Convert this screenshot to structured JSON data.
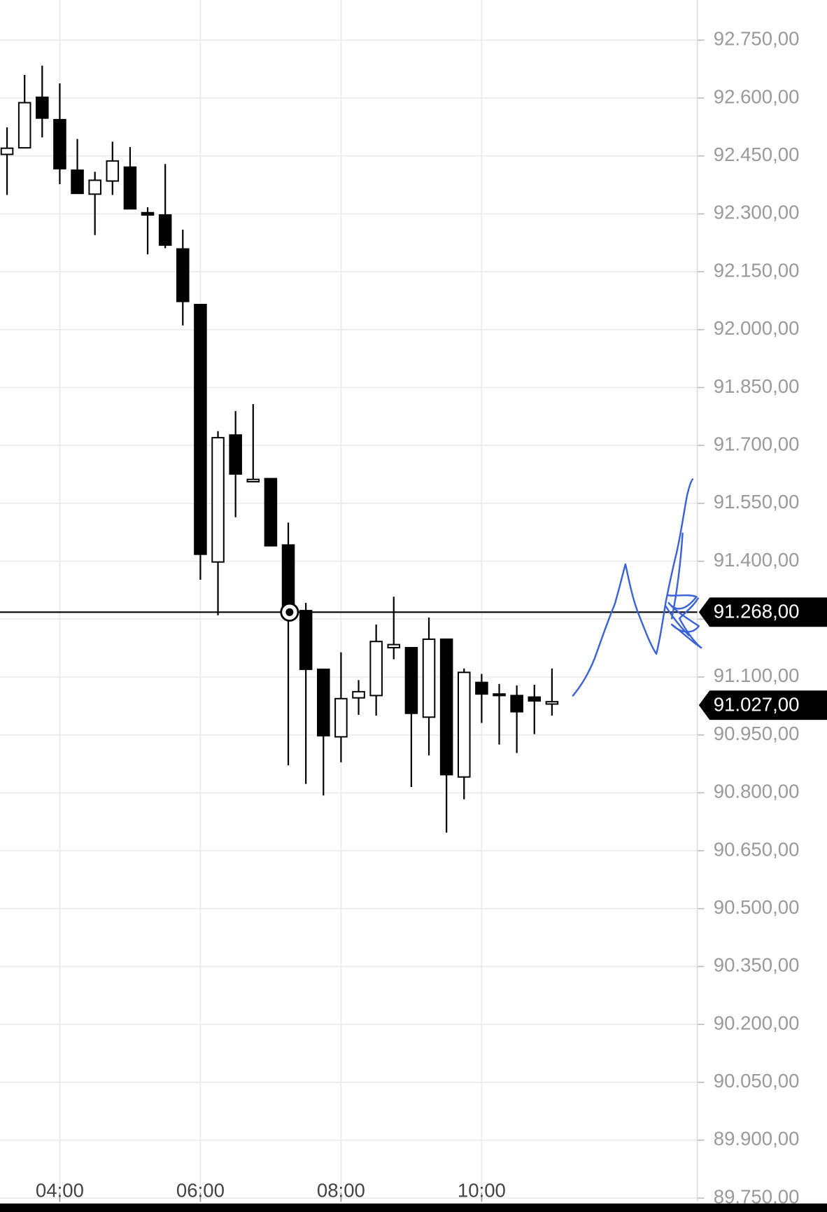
{
  "chart_data": {
    "type": "candlestick",
    "x": [
      "03:15",
      "03:30",
      "03:45",
      "04:00",
      "04:15",
      "04:30",
      "04:45",
      "05:00",
      "05:15",
      "05:30",
      "05:45",
      "06:00",
      "06:15",
      "06:30",
      "06:45",
      "07:00",
      "07:15",
      "07:30",
      "07:45",
      "08:00",
      "08:15",
      "08:30",
      "08:45",
      "09:00",
      "09:15",
      "09:30",
      "09:45",
      "10:00",
      "10:15",
      "10:30",
      "10:45",
      "11:00"
    ],
    "open": [
      92454,
      92471,
      92602,
      92544,
      92413,
      92351,
      92385,
      92421,
      92303,
      92297,
      92209,
      92065,
      91398,
      91727,
      91606,
      91614,
      91442,
      91272,
      91120,
      90945,
      91046,
      91052,
      91176,
      91176,
      90996,
      91198,
      90841,
      91086,
      91056,
      91052,
      91048,
      91030
    ],
    "high": [
      92524,
      92660,
      92684,
      92638,
      92494,
      92409,
      92487,
      92473,
      92317,
      92429,
      92259,
      92065,
      91737,
      91789,
      91807,
      91614,
      91500,
      91292,
      91120,
      91164,
      91092,
      91236,
      91308,
      91176,
      91254,
      91198,
      91122,
      91108,
      91082,
      91078,
      91080,
      91122
    ],
    "low": [
      92349,
      92471,
      92498,
      92377,
      92353,
      92245,
      92349,
      92313,
      92195,
      92211,
      92011,
      91352,
      91260,
      91514,
      91606,
      91440,
      90871,
      90823,
      90793,
      90879,
      91002,
      91000,
      91146,
      90815,
      90897,
      90697,
      90783,
      90981,
      90925,
      90903,
      90952,
      91000
    ],
    "close": [
      92470,
      92588,
      92548,
      92417,
      92353,
      92387,
      92437,
      92313,
      92297,
      92219,
      92073,
      91418,
      91720,
      91626,
      91612,
      91440,
      91278,
      91120,
      90948,
      91044,
      91062,
      91192,
      91184,
      91006,
      91198,
      90847,
      91112,
      91056,
      91052,
      91010,
      91038,
      91036
    ],
    "up_color": "#ffffff",
    "down_color": "#000000",
    "xlim": [
      "03:09",
      "13:04"
    ],
    "xticks": [
      "04:00",
      "06:00",
      "08:00",
      "10:00"
    ],
    "ylim": [
      89740,
      92854
    ],
    "yticks": [
      {
        "value": 92750,
        "label": "92.750,00"
      },
      {
        "value": 92600,
        "label": "92.600,00"
      },
      {
        "value": 92450,
        "label": "92.450,00"
      },
      {
        "value": 92300,
        "label": "92.300,00"
      },
      {
        "value": 92150,
        "label": "92.150,00"
      },
      {
        "value": 92000,
        "label": "92.000,00"
      },
      {
        "value": 91850,
        "label": "91.850,00"
      },
      {
        "value": 91700,
        "label": "91.700,00"
      },
      {
        "value": 91550,
        "label": "91.550,00"
      },
      {
        "value": 91400,
        "label": "91.400,00"
      },
      {
        "value": 91250,
        "label": "91.250,00"
      },
      {
        "value": 91100,
        "label": "91.100,00"
      },
      {
        "value": 90950,
        "label": "90.950,00"
      },
      {
        "value": 90800,
        "label": "90.800,00"
      },
      {
        "value": 90650,
        "label": "90.650,00"
      },
      {
        "value": 90500,
        "label": "90.500,00"
      },
      {
        "value": 90350,
        "label": "90.350,00"
      },
      {
        "value": 90200,
        "label": "90.200,00"
      },
      {
        "value": 90050,
        "label": "90.050,00"
      },
      {
        "value": 89900,
        "label": "89.900,00"
      },
      {
        "value": 89750,
        "label": "89.750,00"
      }
    ],
    "grid": true,
    "hline": {
      "value": 91268,
      "label": "91.268,00"
    },
    "last_price": {
      "value": 91027,
      "label": "91.027,00"
    }
  }
}
